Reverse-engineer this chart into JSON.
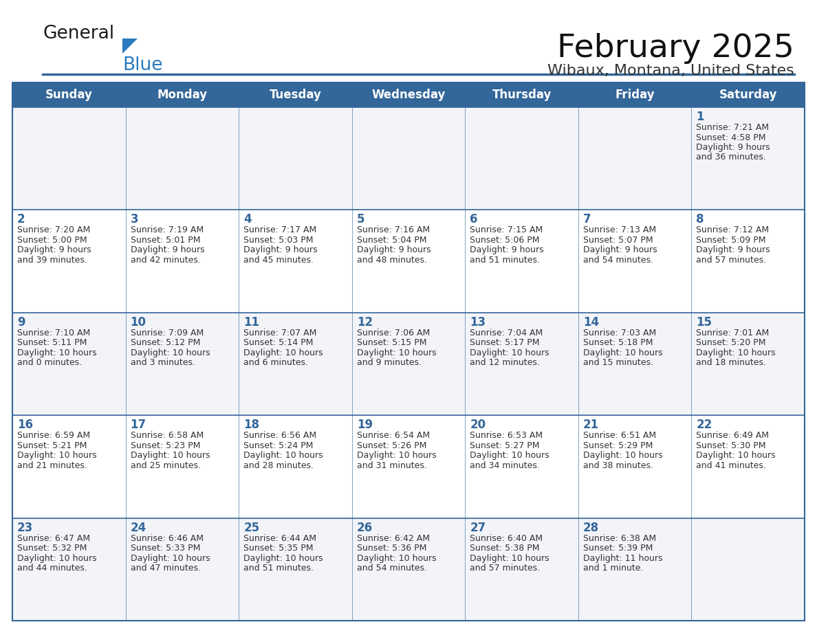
{
  "title": "February 2025",
  "subtitle": "Wibaux, Montana, United States",
  "days_of_week": [
    "Sunday",
    "Monday",
    "Tuesday",
    "Wednesday",
    "Thursday",
    "Friday",
    "Saturday"
  ],
  "header_bg": "#336699",
  "header_text": "#ffffff",
  "row_bg_odd": "#f2f4f8",
  "row_bg_even": "#ffffff",
  "border_color": "#336699",
  "day_num_color": "#336699",
  "text_color": "#333333",
  "title_color": "#111111",
  "subtitle_color": "#333333",
  "calendar_data": [
    [
      null,
      null,
      null,
      null,
      null,
      null,
      {
        "day": "1",
        "sunrise": "7:21 AM",
        "sunset": "4:58 PM",
        "daylight_hours": "9 hours",
        "daylight_mins": "and 36 minutes."
      }
    ],
    [
      {
        "day": "2",
        "sunrise": "7:20 AM",
        "sunset": "5:00 PM",
        "daylight_hours": "9 hours",
        "daylight_mins": "and 39 minutes."
      },
      {
        "day": "3",
        "sunrise": "7:19 AM",
        "sunset": "5:01 PM",
        "daylight_hours": "9 hours",
        "daylight_mins": "and 42 minutes."
      },
      {
        "day": "4",
        "sunrise": "7:17 AM",
        "sunset": "5:03 PM",
        "daylight_hours": "9 hours",
        "daylight_mins": "and 45 minutes."
      },
      {
        "day": "5",
        "sunrise": "7:16 AM",
        "sunset": "5:04 PM",
        "daylight_hours": "9 hours",
        "daylight_mins": "and 48 minutes."
      },
      {
        "day": "6",
        "sunrise": "7:15 AM",
        "sunset": "5:06 PM",
        "daylight_hours": "9 hours",
        "daylight_mins": "and 51 minutes."
      },
      {
        "day": "7",
        "sunrise": "7:13 AM",
        "sunset": "5:07 PM",
        "daylight_hours": "9 hours",
        "daylight_mins": "and 54 minutes."
      },
      {
        "day": "8",
        "sunrise": "7:12 AM",
        "sunset": "5:09 PM",
        "daylight_hours": "9 hours",
        "daylight_mins": "and 57 minutes."
      }
    ],
    [
      {
        "day": "9",
        "sunrise": "7:10 AM",
        "sunset": "5:11 PM",
        "daylight_hours": "10 hours",
        "daylight_mins": "and 0 minutes."
      },
      {
        "day": "10",
        "sunrise": "7:09 AM",
        "sunset": "5:12 PM",
        "daylight_hours": "10 hours",
        "daylight_mins": "and 3 minutes."
      },
      {
        "day": "11",
        "sunrise": "7:07 AM",
        "sunset": "5:14 PM",
        "daylight_hours": "10 hours",
        "daylight_mins": "and 6 minutes."
      },
      {
        "day": "12",
        "sunrise": "7:06 AM",
        "sunset": "5:15 PM",
        "daylight_hours": "10 hours",
        "daylight_mins": "and 9 minutes."
      },
      {
        "day": "13",
        "sunrise": "7:04 AM",
        "sunset": "5:17 PM",
        "daylight_hours": "10 hours",
        "daylight_mins": "and 12 minutes."
      },
      {
        "day": "14",
        "sunrise": "7:03 AM",
        "sunset": "5:18 PM",
        "daylight_hours": "10 hours",
        "daylight_mins": "and 15 minutes."
      },
      {
        "day": "15",
        "sunrise": "7:01 AM",
        "sunset": "5:20 PM",
        "daylight_hours": "10 hours",
        "daylight_mins": "and 18 minutes."
      }
    ],
    [
      {
        "day": "16",
        "sunrise": "6:59 AM",
        "sunset": "5:21 PM",
        "daylight_hours": "10 hours",
        "daylight_mins": "and 21 minutes."
      },
      {
        "day": "17",
        "sunrise": "6:58 AM",
        "sunset": "5:23 PM",
        "daylight_hours": "10 hours",
        "daylight_mins": "and 25 minutes."
      },
      {
        "day": "18",
        "sunrise": "6:56 AM",
        "sunset": "5:24 PM",
        "daylight_hours": "10 hours",
        "daylight_mins": "and 28 minutes."
      },
      {
        "day": "19",
        "sunrise": "6:54 AM",
        "sunset": "5:26 PM",
        "daylight_hours": "10 hours",
        "daylight_mins": "and 31 minutes."
      },
      {
        "day": "20",
        "sunrise": "6:53 AM",
        "sunset": "5:27 PM",
        "daylight_hours": "10 hours",
        "daylight_mins": "and 34 minutes."
      },
      {
        "day": "21",
        "sunrise": "6:51 AM",
        "sunset": "5:29 PM",
        "daylight_hours": "10 hours",
        "daylight_mins": "and 38 minutes."
      },
      {
        "day": "22",
        "sunrise": "6:49 AM",
        "sunset": "5:30 PM",
        "daylight_hours": "10 hours",
        "daylight_mins": "and 41 minutes."
      }
    ],
    [
      {
        "day": "23",
        "sunrise": "6:47 AM",
        "sunset": "5:32 PM",
        "daylight_hours": "10 hours",
        "daylight_mins": "and 44 minutes."
      },
      {
        "day": "24",
        "sunrise": "6:46 AM",
        "sunset": "5:33 PM",
        "daylight_hours": "10 hours",
        "daylight_mins": "and 47 minutes."
      },
      {
        "day": "25",
        "sunrise": "6:44 AM",
        "sunset": "5:35 PM",
        "daylight_hours": "10 hours",
        "daylight_mins": "and 51 minutes."
      },
      {
        "day": "26",
        "sunrise": "6:42 AM",
        "sunset": "5:36 PM",
        "daylight_hours": "10 hours",
        "daylight_mins": "and 54 minutes."
      },
      {
        "day": "27",
        "sunrise": "6:40 AM",
        "sunset": "5:38 PM",
        "daylight_hours": "10 hours",
        "daylight_mins": "and 57 minutes."
      },
      {
        "day": "28",
        "sunrise": "6:38 AM",
        "sunset": "5:39 PM",
        "daylight_hours": "11 hours",
        "daylight_mins": "and 1 minute."
      },
      null
    ]
  ],
  "logo_general_color": "#1a1a1a",
  "logo_blue_color": "#2a7bbf",
  "logo_triangle_color": "#2a7bbf"
}
